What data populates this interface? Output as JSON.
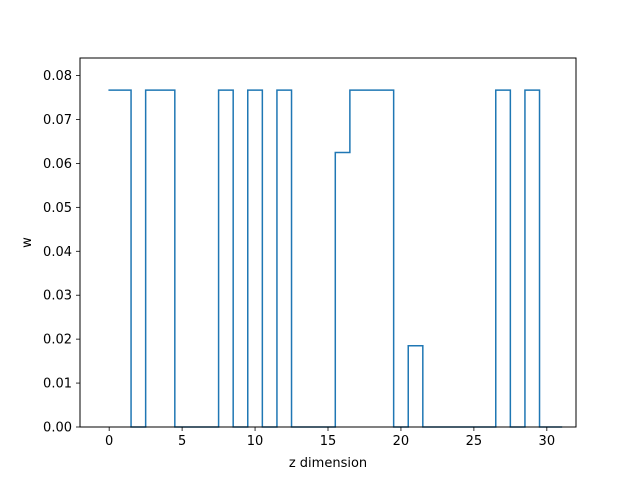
{
  "chart_data": {
    "type": "line",
    "drawstyle": "steps-mid",
    "title": "",
    "xlabel": "z dimension",
    "ylabel": "w",
    "xlim": [
      -2,
      32
    ],
    "ylim": [
      0,
      0.084
    ],
    "xticks": [
      0,
      5,
      10,
      15,
      20,
      25,
      30
    ],
    "yticks": [
      0.0,
      0.01,
      0.02,
      0.03,
      0.04,
      0.05,
      0.06,
      0.07,
      0.08
    ],
    "ytick_labels": [
      "0.00",
      "0.01",
      "0.02",
      "0.03",
      "0.04",
      "0.05",
      "0.06",
      "0.07",
      "0.08"
    ],
    "grid": false,
    "line_color": "#1f77b4",
    "series": [
      {
        "x": [
          0,
          1,
          2,
          3,
          4,
          5,
          6,
          7,
          8,
          9,
          10,
          11,
          12,
          13,
          14,
          15,
          16,
          17,
          18,
          19,
          20,
          21,
          22,
          23,
          24,
          25,
          26,
          27,
          28,
          29,
          30,
          31
        ],
        "values": [
          0.0767,
          0.0767,
          0,
          0.0767,
          0.0767,
          0,
          0,
          0,
          0.0767,
          0,
          0.0767,
          0,
          0.0767,
          0,
          0,
          0,
          0.0625,
          0.0767,
          0.0767,
          0.0767,
          0,
          0.0185,
          0,
          0,
          0,
          0,
          0,
          0.0767,
          0,
          0.0767,
          0,
          0
        ]
      }
    ]
  }
}
